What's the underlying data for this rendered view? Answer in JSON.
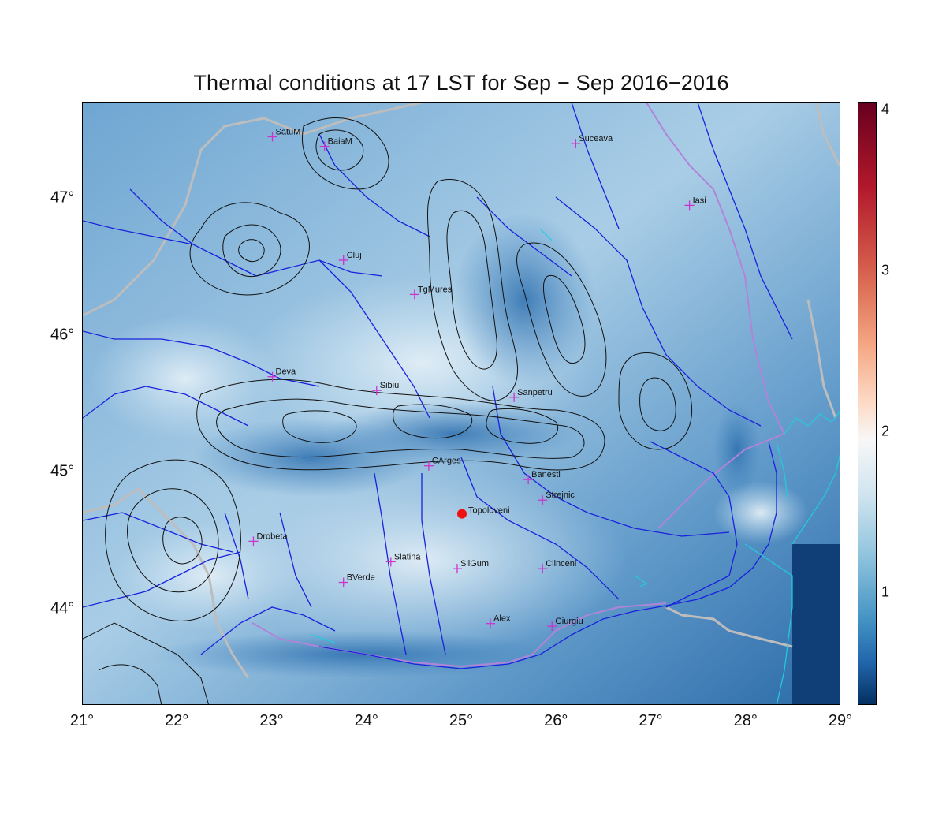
{
  "title": "Thermal conditions at 17 LST for Sep − Sep  2016−2016",
  "x_ticks": [
    "21°",
    "22°",
    "23°",
    "24°",
    "25°",
    "26°",
    "27°",
    "28°",
    "29°"
  ],
  "y_ticks": [
    "44°",
    "45°",
    "46°",
    "47°"
  ],
  "colorbar": {
    "ticks": [
      "1",
      "2",
      "3",
      "4"
    ],
    "range": [
      0.3,
      4.05
    ]
  },
  "colors": {
    "city_marker": "#cc33cc",
    "highlight_marker": "#ee1111",
    "rivers": "#1a22dd",
    "contours": "#000000",
    "borders": "#bbbbbb",
    "coast": "#22ccdd"
  },
  "extent": {
    "lon": [
      21,
      29
    ],
    "lat": [
      43.3,
      47.7
    ]
  },
  "cities": [
    {
      "name": "SatuM",
      "lon": 23.0,
      "lat": 47.45
    },
    {
      "name": "BaiaM",
      "lon": 23.55,
      "lat": 47.38
    },
    {
      "name": "Suceava",
      "lon": 26.2,
      "lat": 47.4
    },
    {
      "name": "Iasi",
      "lon": 27.4,
      "lat": 46.95
    },
    {
      "name": "Cluj",
      "lon": 23.75,
      "lat": 46.55
    },
    {
      "name": "TgMures",
      "lon": 24.5,
      "lat": 46.3
    },
    {
      "name": "Deva",
      "lon": 23.0,
      "lat": 45.7
    },
    {
      "name": "Sibiu",
      "lon": 24.1,
      "lat": 45.6
    },
    {
      "name": "Sanpetru",
      "lon": 25.55,
      "lat": 45.55
    },
    {
      "name": "CArges",
      "lon": 24.65,
      "lat": 45.05
    },
    {
      "name": "Banesti",
      "lon": 25.7,
      "lat": 44.95
    },
    {
      "name": "Strejnic",
      "lon": 25.85,
      "lat": 44.8
    },
    {
      "name": "Drobeta",
      "lon": 22.8,
      "lat": 44.5
    },
    {
      "name": "Slatina",
      "lon": 24.25,
      "lat": 44.35
    },
    {
      "name": "SilGum",
      "lon": 24.95,
      "lat": 44.3
    },
    {
      "name": "Clinceni",
      "lon": 25.85,
      "lat": 44.3
    },
    {
      "name": "BVerde",
      "lon": 23.75,
      "lat": 44.2
    },
    {
      "name": "Alex",
      "lon": 25.3,
      "lat": 43.9
    },
    {
      "name": "Giurgiu",
      "lon": 25.95,
      "lat": 43.88
    }
  ],
  "highlight": {
    "name": "Topoloveni",
    "lon": 25.0,
    "lat": 44.7
  }
}
